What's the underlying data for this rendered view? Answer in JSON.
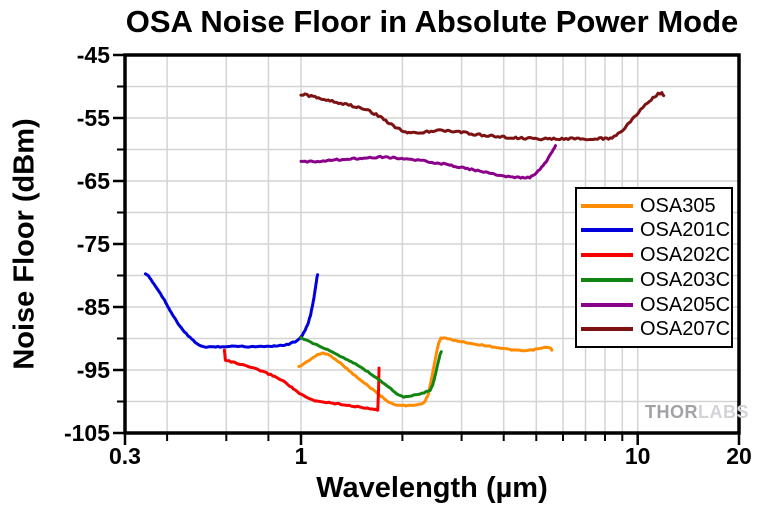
{
  "watermark": {
    "thor": "THOR",
    "labs": "LABS"
  },
  "chart_data": {
    "type": "line",
    "title": "OSA Noise Floor in Absolute Power Mode",
    "xlabel": "Wavelength (µm)",
    "ylabel": "Noise Floor (dBm)",
    "xscale": "log",
    "xlim": [
      0.3,
      20
    ],
    "ylim": [
      -105,
      -45
    ],
    "grid": true,
    "legend_position": "inside-right-middle",
    "style": {
      "grid_color": "#d4d4d4",
      "axis_color": "#000000",
      "background": "#ffffff"
    },
    "axes": {
      "x": {
        "major_ticks": [
          {
            "v": 0.3,
            "label": "0.3"
          },
          {
            "v": 1,
            "label": "1"
          },
          {
            "v": 10,
            "label": "10"
          },
          {
            "v": 20,
            "label": "20"
          }
        ],
        "minor_ticks": [
          0.4,
          0.6,
          0.8,
          2,
          3,
          4,
          5,
          6,
          7,
          8,
          9
        ],
        "grid": [
          0.4,
          0.6,
          0.8,
          1,
          2,
          3,
          4,
          5,
          6,
          7,
          8,
          9,
          10
        ]
      },
      "y": {
        "major_ticks": [
          {
            "v": -45,
            "label": "-45"
          },
          {
            "v": -55,
            "label": "-55"
          },
          {
            "v": -65,
            "label": "-65"
          },
          {
            "v": -75,
            "label": "-75"
          },
          {
            "v": -85,
            "label": "-85"
          },
          {
            "v": -95,
            "label": "-95"
          },
          {
            "v": -105,
            "label": "-105"
          }
        ],
        "minor_ticks": [
          -50,
          -60,
          -70,
          -80,
          -90,
          -100
        ],
        "grid": [
          -50,
          -55,
          -60,
          -65,
          -70,
          -75,
          -80,
          -85,
          -90,
          -95,
          -100
        ]
      }
    },
    "units": {
      "x": "µm",
      "y": "dBm"
    },
    "series": [
      {
        "name": "OSA305",
        "color": "#ff8c00",
        "noise": 0.5,
        "points": [
          [
            0.985,
            -94.5
          ],
          [
            1.0,
            -94.3
          ],
          [
            1.04,
            -93.7
          ],
          [
            1.08,
            -93.1
          ],
          [
            1.12,
            -92.6
          ],
          [
            1.16,
            -92.3
          ],
          [
            1.2,
            -92.5
          ],
          [
            1.26,
            -93.2
          ],
          [
            1.33,
            -94.2
          ],
          [
            1.41,
            -95.4
          ],
          [
            1.5,
            -96.6
          ],
          [
            1.59,
            -97.6
          ],
          [
            1.68,
            -98.6
          ],
          [
            1.77,
            -99.6
          ],
          [
            1.85,
            -100.3
          ],
          [
            1.95,
            -100.6
          ],
          [
            2.05,
            -100.65
          ],
          [
            2.15,
            -100.6
          ],
          [
            2.25,
            -100.45
          ],
          [
            2.33,
            -100.1
          ],
          [
            2.39,
            -98.8
          ],
          [
            2.44,
            -96.5
          ],
          [
            2.5,
            -93.5
          ],
          [
            2.56,
            -90.8
          ],
          [
            2.6,
            -89.95
          ],
          [
            2.66,
            -89.9
          ],
          [
            2.8,
            -90.2
          ],
          [
            3.0,
            -90.5
          ],
          [
            3.25,
            -90.85
          ],
          [
            3.5,
            -91.1
          ],
          [
            3.8,
            -91.4
          ],
          [
            4.1,
            -91.7
          ],
          [
            4.4,
            -91.9
          ],
          [
            4.65,
            -91.95
          ],
          [
            4.9,
            -91.8
          ],
          [
            5.1,
            -91.6
          ],
          [
            5.3,
            -91.45
          ],
          [
            5.45,
            -91.4
          ],
          [
            5.52,
            -91.55
          ],
          [
            5.56,
            -91.9
          ]
        ]
      },
      {
        "name": "OSA201C",
        "color": "#0000dd",
        "noise": 0.5,
        "points": [
          [
            0.345,
            -79.8
          ],
          [
            0.352,
            -80.1
          ],
          [
            0.362,
            -81.0
          ],
          [
            0.375,
            -82.2
          ],
          [
            0.39,
            -83.6
          ],
          [
            0.405,
            -85.2
          ],
          [
            0.42,
            -86.7
          ],
          [
            0.44,
            -88.3
          ],
          [
            0.462,
            -89.6
          ],
          [
            0.485,
            -90.6
          ],
          [
            0.505,
            -91.2
          ],
          [
            0.52,
            -91.4
          ],
          [
            0.55,
            -91.3
          ],
          [
            0.6,
            -91.3
          ],
          [
            0.65,
            -91.2
          ],
          [
            0.7,
            -91.3
          ],
          [
            0.76,
            -91.25
          ],
          [
            0.82,
            -91.2
          ],
          [
            0.88,
            -91.1
          ],
          [
            0.92,
            -90.9
          ],
          [
            0.96,
            -90.5
          ],
          [
            0.99,
            -90.0
          ],
          [
            1.01,
            -89.4
          ],
          [
            1.03,
            -88.6
          ],
          [
            1.05,
            -87.6
          ],
          [
            1.07,
            -86.0
          ],
          [
            1.09,
            -83.8
          ],
          [
            1.105,
            -81.8
          ],
          [
            1.115,
            -80.4
          ],
          [
            1.12,
            -79.9
          ]
        ]
      },
      {
        "name": "OSA202C",
        "color": "#f80000",
        "noise": 0.6,
        "points": [
          [
            0.592,
            -91.9
          ],
          [
            0.596,
            -93.4
          ],
          [
            0.62,
            -93.7
          ],
          [
            0.65,
            -94.0
          ],
          [
            0.7,
            -94.5
          ],
          [
            0.75,
            -95.0
          ],
          [
            0.8,
            -95.6
          ],
          [
            0.85,
            -96.2
          ],
          [
            0.9,
            -97.0
          ],
          [
            0.95,
            -98.0
          ],
          [
            1.0,
            -98.9
          ],
          [
            1.05,
            -99.5
          ],
          [
            1.1,
            -99.9
          ],
          [
            1.18,
            -100.1
          ],
          [
            1.26,
            -100.3
          ],
          [
            1.35,
            -100.5
          ],
          [
            1.45,
            -100.8
          ],
          [
            1.55,
            -101.0
          ],
          [
            1.63,
            -101.2
          ],
          [
            1.69,
            -101.4
          ],
          [
            1.7,
            -98.0
          ],
          [
            1.705,
            -94.6
          ]
        ]
      },
      {
        "name": "OSA203C",
        "color": "#128412",
        "noise": 0.4,
        "points": [
          [
            1.0,
            -89.9
          ],
          [
            1.1,
            -90.9
          ],
          [
            1.2,
            -91.8
          ],
          [
            1.32,
            -92.9
          ],
          [
            1.45,
            -94.0
          ],
          [
            1.58,
            -95.3
          ],
          [
            1.72,
            -96.7
          ],
          [
            1.85,
            -98.0
          ],
          [
            1.95,
            -99.0
          ],
          [
            2.02,
            -99.3
          ],
          [
            2.1,
            -99.2
          ],
          [
            2.2,
            -98.9
          ],
          [
            2.32,
            -98.6
          ],
          [
            2.42,
            -98.2
          ],
          [
            2.46,
            -97.4
          ],
          [
            2.5,
            -96.0
          ],
          [
            2.55,
            -94.0
          ],
          [
            2.59,
            -92.5
          ],
          [
            2.61,
            -92.1
          ]
        ]
      },
      {
        "name": "OSA205C",
        "color": "#8b008b",
        "noise": 0.8,
        "points": [
          [
            1.0,
            -62.0
          ],
          [
            1.12,
            -61.85
          ],
          [
            1.26,
            -61.65
          ],
          [
            1.42,
            -61.45
          ],
          [
            1.58,
            -61.3
          ],
          [
            1.72,
            -61.2
          ],
          [
            1.88,
            -61.3
          ],
          [
            2.05,
            -61.5
          ],
          [
            2.25,
            -61.75
          ],
          [
            2.48,
            -62.05
          ],
          [
            2.72,
            -62.4
          ],
          [
            3.0,
            -62.85
          ],
          [
            3.3,
            -63.3
          ],
          [
            3.62,
            -63.75
          ],
          [
            3.95,
            -64.15
          ],
          [
            4.25,
            -64.4
          ],
          [
            4.55,
            -64.5
          ],
          [
            4.78,
            -64.45
          ],
          [
            4.95,
            -64.0
          ],
          [
            5.12,
            -63.2
          ],
          [
            5.3,
            -62.2
          ],
          [
            5.48,
            -61.0
          ],
          [
            5.62,
            -60.0
          ],
          [
            5.7,
            -59.5
          ]
        ]
      },
      {
        "name": "OSA207C",
        "color": "#7d1212",
        "noise": 1.1,
        "points": [
          [
            1.0,
            -51.2
          ],
          [
            1.1,
            -51.7
          ],
          [
            1.22,
            -52.2
          ],
          [
            1.35,
            -52.8
          ],
          [
            1.48,
            -53.3
          ],
          [
            1.6,
            -53.9
          ],
          [
            1.72,
            -54.8
          ],
          [
            1.83,
            -55.8
          ],
          [
            1.93,
            -56.6
          ],
          [
            2.02,
            -57.1
          ],
          [
            2.12,
            -57.35
          ],
          [
            2.25,
            -57.35
          ],
          [
            2.4,
            -57.15
          ],
          [
            2.58,
            -56.95
          ],
          [
            2.75,
            -57.05
          ],
          [
            2.95,
            -57.25
          ],
          [
            3.25,
            -57.55
          ],
          [
            3.55,
            -57.75
          ],
          [
            3.95,
            -58.0
          ],
          [
            4.4,
            -58.2
          ],
          [
            4.9,
            -58.3
          ],
          [
            5.4,
            -58.3
          ],
          [
            5.95,
            -58.35
          ],
          [
            6.5,
            -58.3
          ],
          [
            7.05,
            -58.35
          ],
          [
            7.6,
            -58.3
          ],
          [
            8.1,
            -58.25
          ],
          [
            8.5,
            -58.0
          ],
          [
            8.9,
            -57.3
          ],
          [
            9.3,
            -56.2
          ],
          [
            9.75,
            -54.9
          ],
          [
            10.2,
            -53.7
          ],
          [
            10.7,
            -52.6
          ],
          [
            11.1,
            -51.8
          ],
          [
            11.5,
            -51.2
          ],
          [
            11.8,
            -51.0
          ],
          [
            11.95,
            -51.6
          ]
        ]
      }
    ]
  }
}
